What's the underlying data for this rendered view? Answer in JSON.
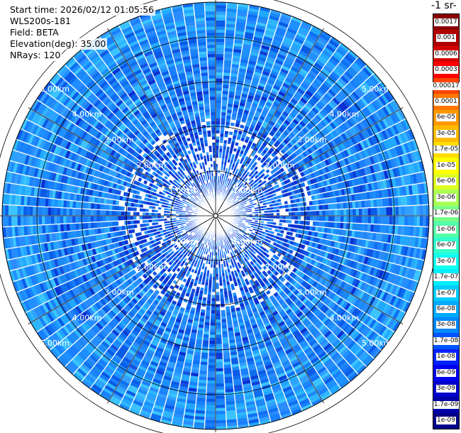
{
  "info": {
    "start_time": "Start time: 2026/02/12 01:05:56",
    "instrument": "WLS200s-181",
    "field": "Field: BETA",
    "elevation": "Elevation(deg): 35.00",
    "nrays": "NRays: 120"
  },
  "colorbar": {
    "title": "-1 sr-",
    "labels": [
      "0.0017",
      "0.001",
      "0.0006",
      "0.0003",
      "0.00017",
      "0.0001",
      "6e-05",
      "3e-05",
      "1.7e-05",
      "1e-05",
      "6e-06",
      "3e-06",
      "1.7e-06",
      "1e-06",
      "6e-07",
      "3e-07",
      "1.7e-07",
      "1e-07",
      "6e-08",
      "3e-08",
      "1.7e-08",
      "1e-08",
      "6e-09",
      "3e-09",
      "1.7e-09",
      "1e-09"
    ],
    "colors": [
      "#8b0000",
      "#b00000",
      "#d40000",
      "#ff0000",
      "#ff4400",
      "#ff7700",
      "#ff9900",
      "#ffbb00",
      "#ffdd00",
      "#ffff00",
      "#ddff22",
      "#aaff55",
      "#77ff88",
      "#55ffaa",
      "#33ffcc",
      "#11ffee",
      "#00eeff",
      "#00ccff",
      "#00aaff",
      "#0088ff",
      "#0055ff",
      "#0022ff",
      "#0000ee",
      "#0000cc",
      "#0000aa",
      "#000088"
    ]
  },
  "chart_data": {
    "type": "heatmap",
    "projection": "polar (PPI scan)",
    "n_rays": 120,
    "elevation_deg": 35.0,
    "range_rings_km": [
      1,
      2,
      3,
      4,
      5
    ],
    "range_ring_labels": [
      "1.00km",
      "2.00km",
      "3.00km",
      "4.00km",
      "5.00km"
    ],
    "field": "BETA",
    "color_scale": "log",
    "value_range": [
      1e-09,
      0.0017
    ],
    "dominant_values": [
      3e-08,
      6e-08,
      1e-07
    ],
    "grid": true
  }
}
